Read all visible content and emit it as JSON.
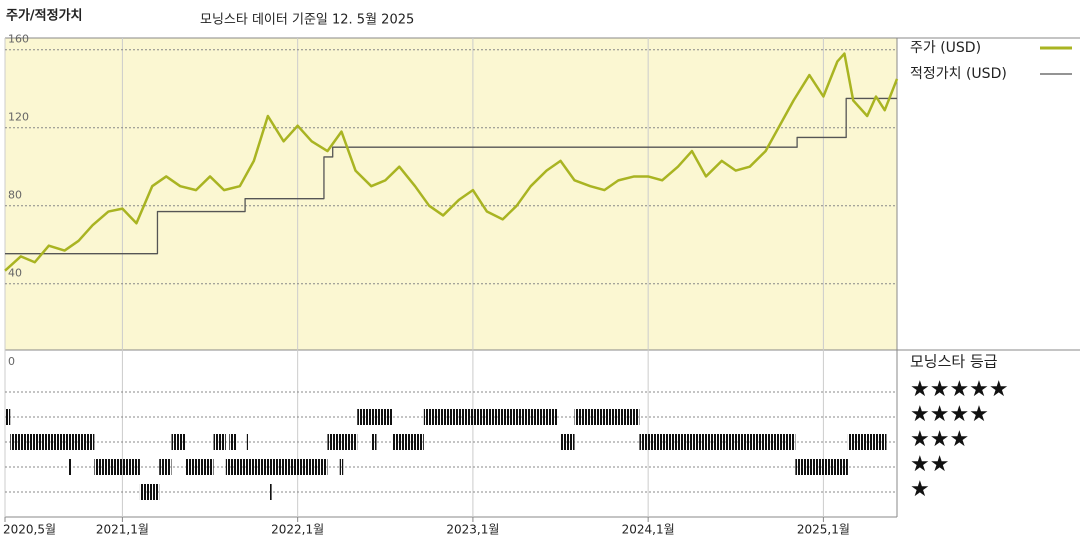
{
  "chart_data": {
    "type": "line",
    "title": "주가/적정가치",
    "subtitle": "모닝스타 데이터 기준일 12. 5월 2025",
    "xlim": [
      2020.33,
      2025.42
    ],
    "xticks": [
      {
        "value": 2020.33,
        "label": "2020,5월"
      },
      {
        "value": 2021.0,
        "label": "2021,1월"
      },
      {
        "value": 2022.0,
        "label": "2022,1월"
      },
      {
        "value": 2023.0,
        "label": "2023,1월"
      },
      {
        "value": 2024.0,
        "label": "2024,1월"
      },
      {
        "value": 2025.0,
        "label": "2025,1월"
      }
    ],
    "ylim": [
      6,
      166
    ],
    "yticks": [
      40,
      80,
      120,
      160
    ],
    "grid": true,
    "legend": "top-right",
    "series": [
      {
        "name": "주가 (USD)",
        "color": "#a9b422",
        "step": false,
        "x": [
          2020.33,
          2020.42,
          2020.5,
          2020.58,
          2020.67,
          2020.75,
          2020.83,
          2020.92,
          2021.0,
          2021.08,
          2021.17,
          2021.25,
          2021.33,
          2021.42,
          2021.5,
          2021.58,
          2021.67,
          2021.75,
          2021.83,
          2021.92,
          2022.0,
          2022.08,
          2022.17,
          2022.25,
          2022.33,
          2022.42,
          2022.5,
          2022.58,
          2022.67,
          2022.75,
          2022.83,
          2022.92,
          2023.0,
          2023.08,
          2023.17,
          2023.25,
          2023.33,
          2023.42,
          2023.5,
          2023.58,
          2023.67,
          2023.75,
          2023.83,
          2023.92,
          2024.0,
          2024.08,
          2024.17,
          2024.25,
          2024.33,
          2024.42,
          2024.5,
          2024.58,
          2024.67,
          2024.75,
          2024.83,
          2024.92,
          2025.0,
          2025.08,
          2025.12,
          2025.17,
          2025.25,
          2025.3,
          2025.35,
          2025.42
        ],
        "values": [
          46.7,
          54,
          51,
          59.5,
          57,
          62,
          70,
          77,
          78.5,
          71,
          90,
          95,
          90,
          88,
          95,
          88,
          90,
          103,
          126,
          113,
          121,
          113,
          108,
          118,
          98,
          90,
          93,
          100,
          90,
          80,
          75,
          83,
          88,
          77,
          73,
          80,
          90,
          98,
          103,
          93,
          90,
          88,
          93,
          95,
          95,
          93,
          100,
          108,
          95,
          103,
          98,
          100,
          108,
          121,
          134,
          147,
          136,
          154,
          158,
          134,
          126,
          136,
          129,
          145
        ]
      },
      {
        "name": "적정가치 (USD)",
        "color": "#555555",
        "step": true,
        "x": [
          2020.33,
          2021.2,
          2021.7,
          2022.15,
          2022.2,
          2024.85,
          2025.13,
          2025.42
        ],
        "values": [
          55.4,
          77,
          83.6,
          105,
          110,
          115,
          135,
          135
        ]
      }
    ],
    "rating_title": "모닝스타 등급",
    "rating_axis_label": "0",
    "rating_labels": [
      {
        "stars": 5,
        "label": "★★★★★"
      },
      {
        "stars": 4,
        "label": "★★★★"
      },
      {
        "stars": 3,
        "label": "★★★"
      },
      {
        "stars": 2,
        "label": "★★"
      },
      {
        "stars": 1,
        "label": "★"
      }
    ],
    "rating_periods": [
      {
        "stars": 4,
        "from": 2020.33,
        "to": 2020.36
      },
      {
        "stars": 3,
        "from": 2020.36,
        "to": 2020.84
      },
      {
        "stars": 2,
        "from": 2020.69,
        "to": 2020.71
      },
      {
        "stars": 2,
        "from": 2020.84,
        "to": 2021.1
      },
      {
        "stars": 1,
        "from": 2021.1,
        "to": 2021.21
      },
      {
        "stars": 2,
        "from": 2021.21,
        "to": 2021.28
      },
      {
        "stars": 3,
        "from": 2021.28,
        "to": 2021.36
      },
      {
        "stars": 2,
        "from": 2021.36,
        "to": 2021.52
      },
      {
        "stars": 3,
        "from": 2021.52,
        "to": 2021.59
      },
      {
        "stars": 2,
        "from": 2021.59,
        "to": 2022.17
      },
      {
        "stars": 3,
        "from": 2021.61,
        "to": 2021.65
      },
      {
        "stars": 3,
        "from": 2021.71,
        "to": 2021.72
      },
      {
        "stars": 1,
        "from": 2021.84,
        "to": 2021.85
      },
      {
        "stars": 3,
        "from": 2022.17,
        "to": 2022.34
      },
      {
        "stars": 2,
        "from": 2022.24,
        "to": 2022.26
      },
      {
        "stars": 4,
        "from": 2022.34,
        "to": 2022.54
      },
      {
        "stars": 3,
        "from": 2022.42,
        "to": 2022.45
      },
      {
        "stars": 3,
        "from": 2022.54,
        "to": 2022.72
      },
      {
        "stars": 4,
        "from": 2022.72,
        "to": 2023.48
      },
      {
        "stars": 3,
        "from": 2023.5,
        "to": 2023.58
      },
      {
        "stars": 4,
        "from": 2023.58,
        "to": 2023.95
      },
      {
        "stars": 3,
        "from": 2023.95,
        "to": 2024.84
      },
      {
        "stars": 2,
        "from": 2024.84,
        "to": 2025.14
      },
      {
        "stars": 3,
        "from": 2025.14,
        "to": 2025.36
      }
    ]
  }
}
